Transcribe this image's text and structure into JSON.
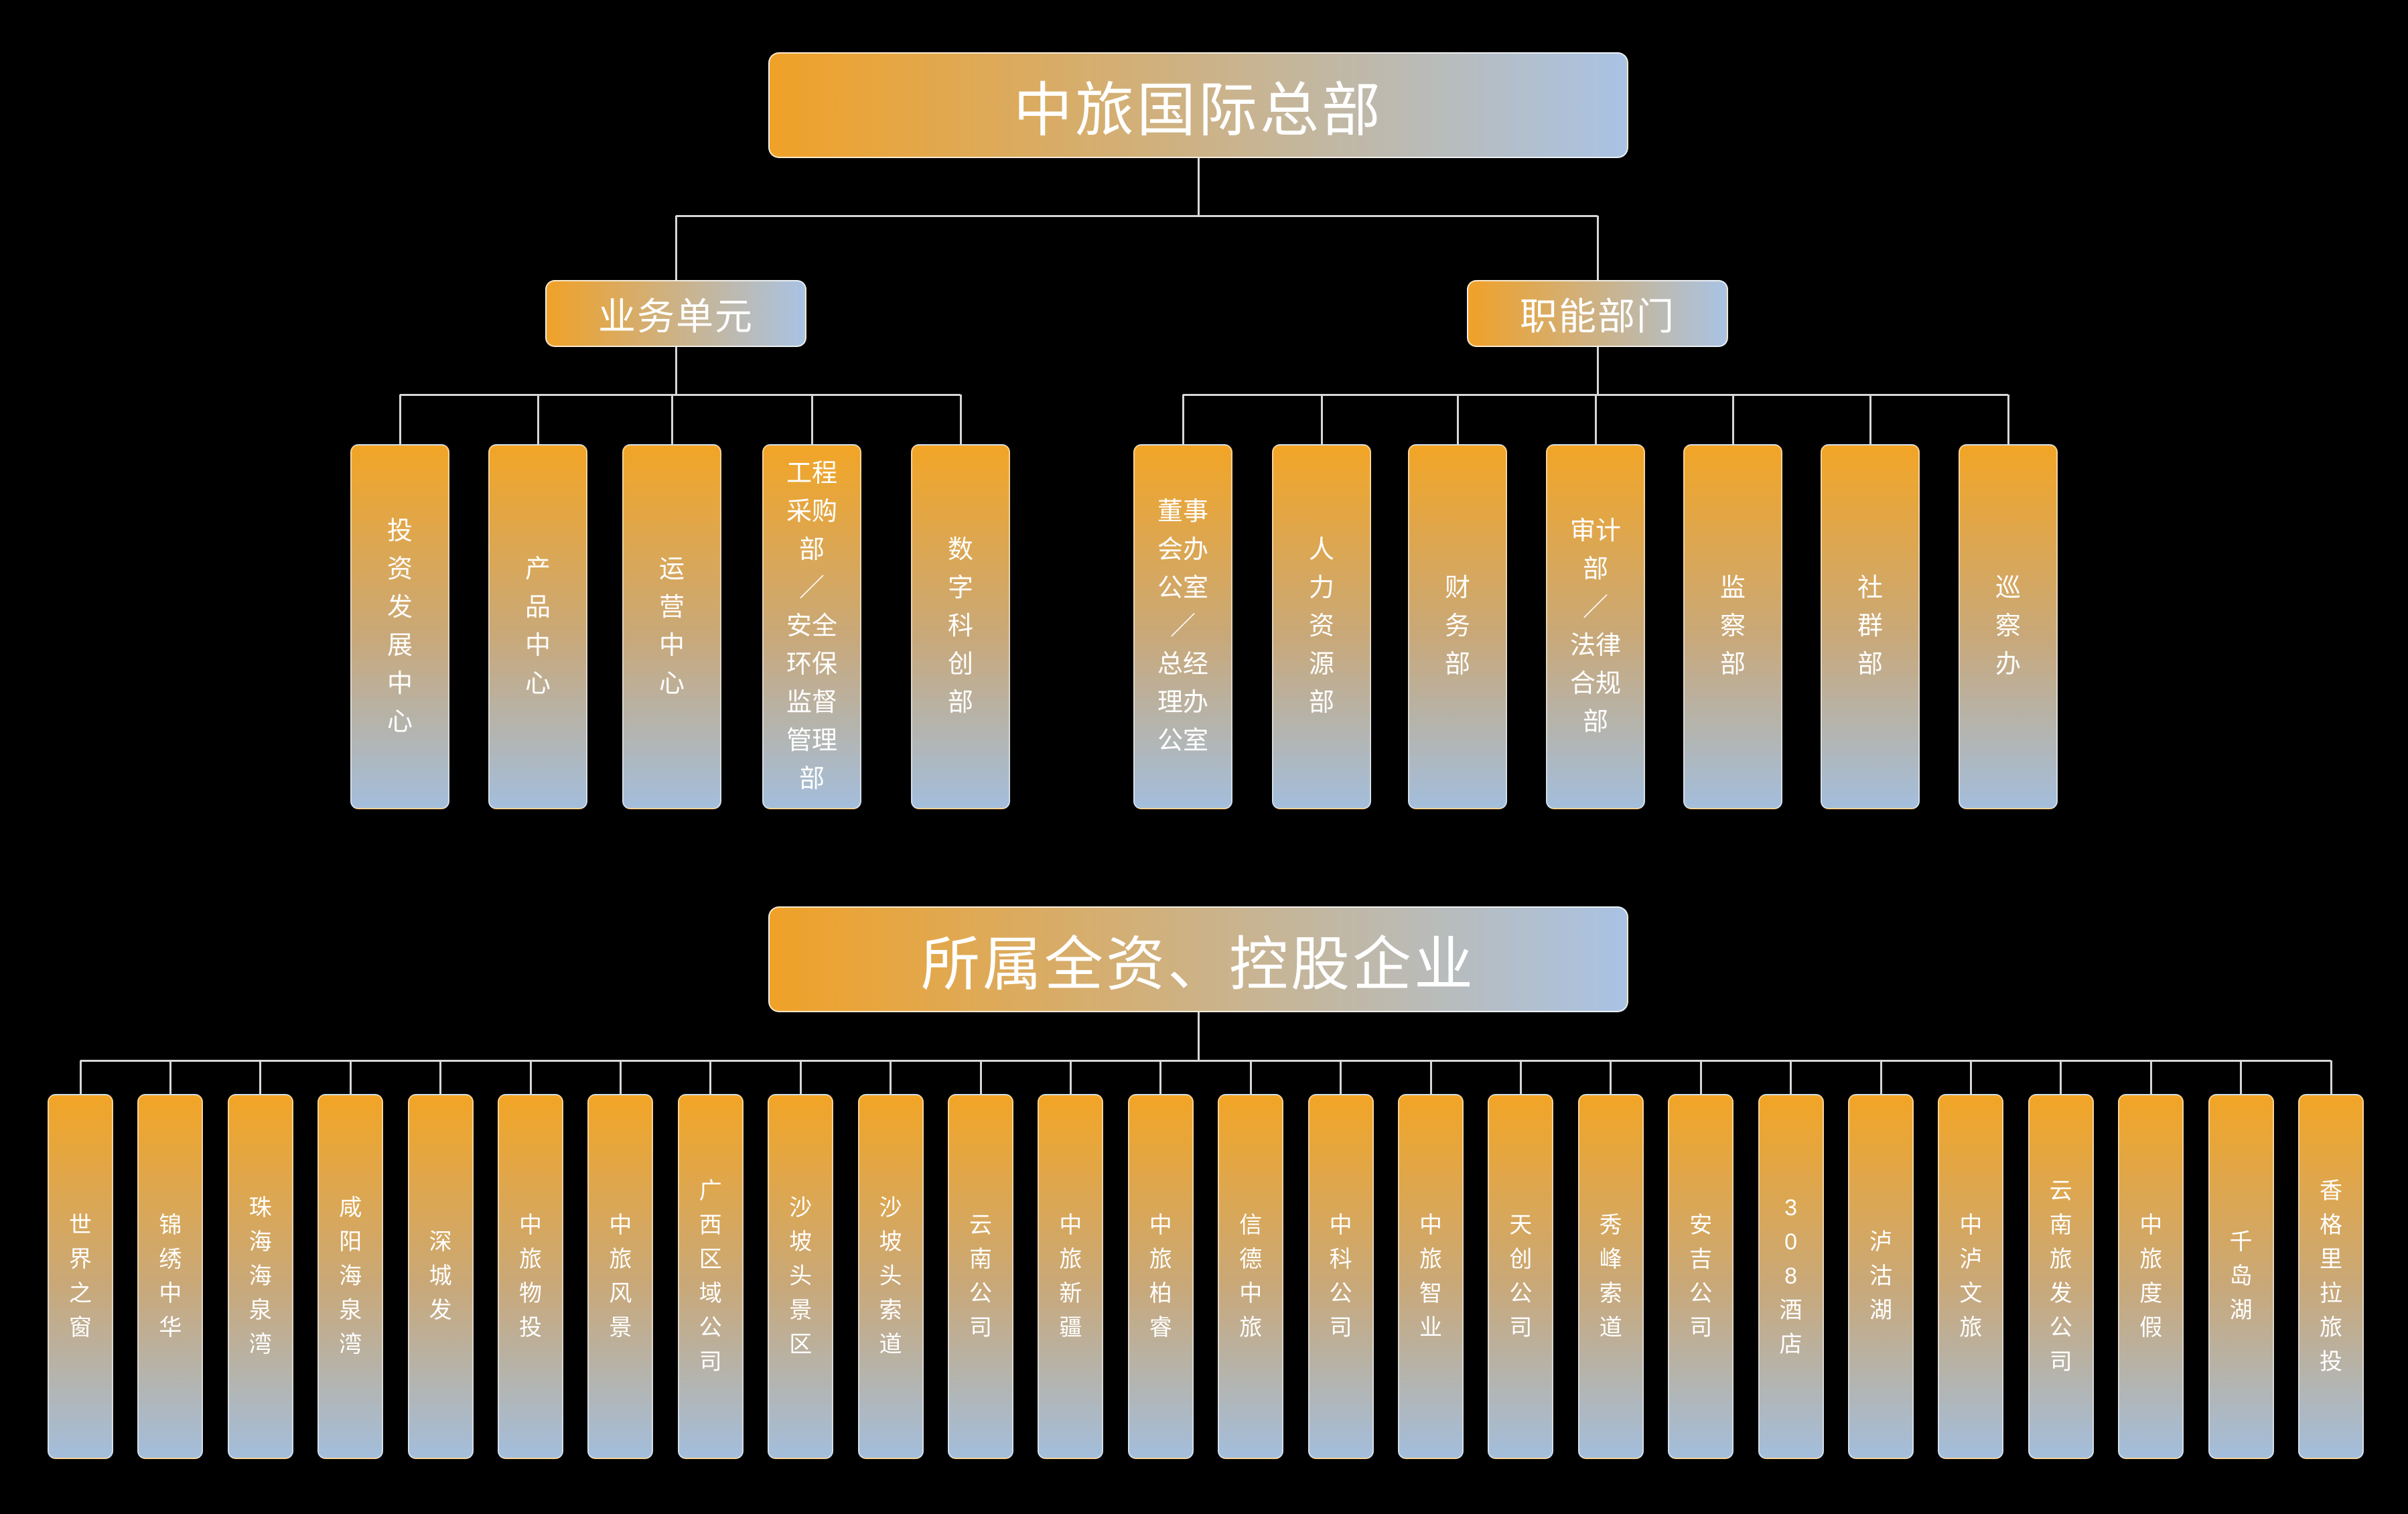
{
  "titles": {
    "root": "中旅国际总部",
    "subsidiaries": "所属全资、控股企业"
  },
  "groups": [
    {
      "label": "业务单元",
      "children": [
        "投资发展中心",
        "产品中心",
        "运营中心",
        "工程采购部／安全环保监督管理部",
        "数字科创部"
      ]
    },
    {
      "label": "职能部门",
      "children": [
        "董事会办公室／总经理办公室",
        "人力资源部",
        "财务部",
        "审计部／法律合规部",
        "监察部",
        "社群部",
        "巡察办"
      ]
    }
  ],
  "subsidiaries": [
    "世界之窗",
    "锦绣中华",
    "珠海海泉湾",
    "咸阳海泉湾",
    "深城发",
    "中旅物投",
    "中旅风景",
    "广西区域公司",
    "沙坡头景区",
    "沙坡头索道",
    "云南公司",
    "中旅新疆",
    "中旅柏睿",
    "信德中旅",
    "中科公司",
    "中旅智业",
    "天创公司",
    "秀峰索道",
    "安吉公司",
    "308酒店",
    "泸沽湖",
    "中泸文旅",
    "云南旅发公司",
    "中旅度假",
    "千岛湖",
    "香格里拉旅投"
  ],
  "colors": {
    "background": "#000000",
    "node_gradient_top": "#F2A526",
    "node_gradient_mid": "#C9A878",
    "node_gradient_bottom": "#A3BEDC",
    "title_gradient_left": "#F0A128",
    "title_gradient_right": "#A9C3E4",
    "connector": "#D7D7D7",
    "text": "#FFFFFF"
  }
}
